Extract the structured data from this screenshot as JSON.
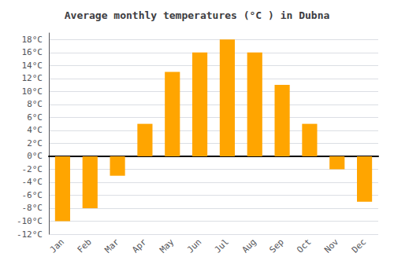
{
  "chart_data": {
    "type": "bar",
    "title": "Average monthly temperatures (°C ) in Dubna",
    "categories": [
      "Jan",
      "Feb",
      "Mar",
      "Apr",
      "May",
      "Jun",
      "Jul",
      "Aug",
      "Sep",
      "Oct",
      "Nov",
      "Dec"
    ],
    "values": [
      -10,
      -8,
      -3,
      5,
      13,
      16,
      18,
      16,
      11,
      5,
      -2,
      -7
    ],
    "color": "#FFA500",
    "ylim": [
      -12,
      19
    ],
    "yticks": [
      {
        "value": -12,
        "label": "-12°C"
      },
      {
        "value": -10,
        "label": "-10°C"
      },
      {
        "value": -8,
        "label": "-8°C"
      },
      {
        "value": -6,
        "label": "-6°C"
      },
      {
        "value": -4,
        "label": "-4°C"
      },
      {
        "value": -2,
        "label": "-2°C"
      },
      {
        "value": 0,
        "label": "0°C"
      },
      {
        "value": 2,
        "label": "2°C"
      },
      {
        "value": 4,
        "label": "4°C"
      },
      {
        "value": 6,
        "label": "6°C"
      },
      {
        "value": 8,
        "label": "8°C"
      },
      {
        "value": 10,
        "label": "10°C"
      },
      {
        "value": 12,
        "label": "12°C"
      },
      {
        "value": 14,
        "label": "14°C"
      },
      {
        "value": 16,
        "label": "16°C"
      },
      {
        "value": 18,
        "label": "18°C"
      }
    ],
    "grid": true
  }
}
